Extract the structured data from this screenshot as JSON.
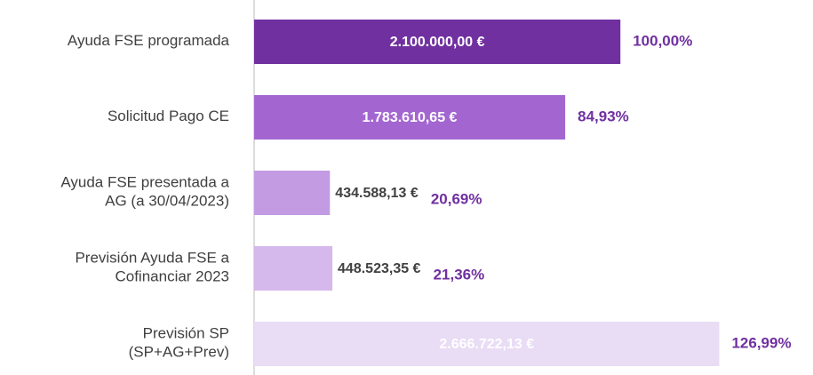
{
  "chart_data": {
    "type": "bar",
    "orientation": "horizontal",
    "categories": [
      "Ayuda FSE programada",
      "Solicitud Pago CE",
      "Ayuda FSE presentada a\nAG (a 30/04/2023)",
      "Previsión Ayuda FSE a\nCofinanciar 2023",
      "Previsión SP\n(SP+AG+Prev)"
    ],
    "values": [
      2100000,
      1783610.65,
      434588.13,
      448523.35,
      2666722.13
    ],
    "value_labels": [
      "2.100.000,00 €",
      "1.783.610,65 €",
      "434.588,13 €",
      "448.523,35 €",
      "2.666.722,13 €"
    ],
    "percent_values": [
      100,
      84.93,
      20.69,
      21.36,
      126.99
    ],
    "percent_labels": [
      "100,00%",
      "84,93%",
      "20,69%",
      "21,36%",
      "126,99%"
    ],
    "colors": [
      "#7030a0",
      "#a366d1",
      "#c39be3",
      "#d5b8ec",
      "#e9dcf5"
    ],
    "percent_color": "#7030a0",
    "xlim": [
      0,
      2700000
    ]
  }
}
